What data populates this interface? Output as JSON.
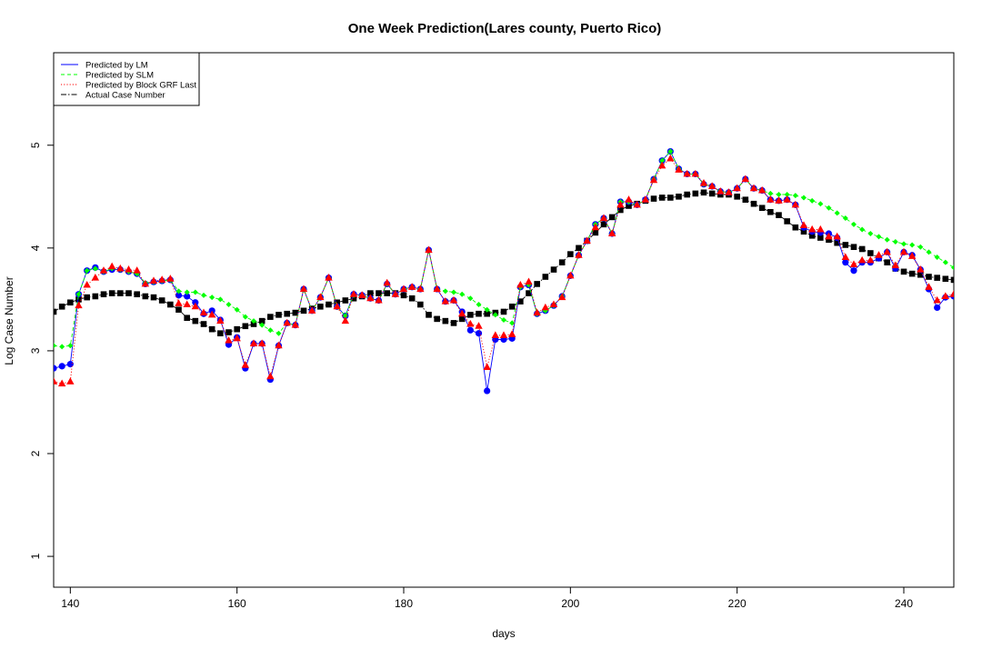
{
  "chart_data": {
    "type": "line",
    "title": "One Week Prediction(Lares county, Puerto Rico)",
    "xlabel": "days",
    "ylabel": "Log Case Number",
    "xlim": [
      138,
      246
    ],
    "ylim": [
      0.7,
      5.9
    ],
    "xticks": [
      140,
      160,
      180,
      200,
      220,
      240
    ],
    "yticks": [
      1,
      2,
      3,
      4,
      5
    ],
    "grid": false,
    "legend_position": "top-left",
    "legend": [
      {
        "label": "Predicted by LM",
        "color": "#0000ff",
        "line": "solid"
      },
      {
        "label": "Predicted by SLM",
        "color": "#00ff00",
        "line": "dashed"
      },
      {
        "label": "Predicted by Block GRF Last",
        "color": "#ff0000",
        "line": "dotted"
      },
      {
        "label": "Actual Case Number",
        "color": "#000000",
        "line": "dashdot"
      }
    ],
    "x": [
      138,
      139,
      140,
      141,
      142,
      143,
      144,
      145,
      146,
      147,
      148,
      149,
      150,
      151,
      152,
      153,
      154,
      155,
      156,
      157,
      158,
      159,
      160,
      161,
      162,
      163,
      164,
      165,
      166,
      167,
      168,
      169,
      170,
      171,
      172,
      173,
      174,
      175,
      176,
      177,
      178,
      179,
      180,
      181,
      182,
      183,
      184,
      185,
      186,
      187,
      188,
      189,
      190,
      191,
      192,
      193,
      194,
      195,
      196,
      197,
      198,
      199,
      200,
      201,
      202,
      203,
      204,
      205,
      206,
      207,
      208,
      209,
      210,
      211,
      212,
      213,
      214,
      215,
      216,
      217,
      218,
      219,
      220,
      221,
      222,
      223,
      224,
      225,
      226,
      227,
      228,
      229,
      230,
      231,
      232,
      233,
      234,
      235,
      236,
      237,
      238,
      239,
      240,
      241,
      242,
      243,
      244,
      245,
      246
    ],
    "series": [
      {
        "name": "Predicted by LM",
        "color": "#0000ff",
        "marker": "circle",
        "values": [
          2.83,
          2.85,
          2.87,
          3.55,
          3.78,
          3.81,
          3.77,
          3.79,
          3.79,
          3.77,
          3.75,
          3.65,
          3.67,
          3.68,
          3.69,
          3.54,
          3.53,
          3.47,
          3.36,
          3.39,
          3.3,
          3.06,
          3.13,
          2.83,
          3.07,
          3.07,
          2.72,
          3.05,
          3.27,
          3.25,
          3.6,
          3.39,
          3.52,
          3.71,
          3.43,
          3.34,
          3.55,
          3.54,
          3.51,
          3.49,
          3.65,
          3.55,
          3.6,
          3.62,
          3.6,
          3.98,
          3.6,
          3.48,
          3.49,
          3.38,
          3.2,
          3.17,
          2.61,
          3.11,
          3.11,
          3.12,
          3.62,
          3.64,
          3.36,
          3.39,
          3.44,
          3.53,
          3.73,
          3.93,
          4.07,
          4.23,
          4.29,
          4.14,
          4.45,
          4.45,
          4.42,
          4.47,
          4.67,
          4.85,
          4.94,
          4.77,
          4.72,
          4.72,
          4.62,
          4.6,
          4.55,
          4.54,
          4.58,
          4.67,
          4.58,
          4.56,
          4.47,
          4.46,
          4.47,
          4.42,
          4.2,
          4.16,
          4.15,
          4.14,
          4.1,
          3.86,
          3.78,
          3.86,
          3.86,
          3.9,
          3.96,
          3.8,
          3.96,
          3.93,
          3.79,
          3.6,
          3.42,
          3.52,
          3.53
        ]
      },
      {
        "name": "Predicted by SLM",
        "color": "#00ff00",
        "marker": "diamond",
        "values": [
          3.05,
          3.04,
          3.05,
          3.55,
          3.78,
          3.8,
          3.77,
          3.8,
          3.79,
          3.77,
          3.75,
          3.66,
          3.67,
          3.68,
          3.69,
          3.58,
          3.57,
          3.57,
          3.54,
          3.52,
          3.5,
          3.45,
          3.4,
          3.33,
          3.29,
          3.25,
          3.2,
          3.17,
          3.27,
          3.25,
          3.6,
          3.39,
          3.52,
          3.71,
          3.43,
          3.34,
          3.54,
          3.54,
          3.51,
          3.49,
          3.65,
          3.55,
          3.6,
          3.62,
          3.6,
          3.98,
          3.6,
          3.58,
          3.57,
          3.55,
          3.51,
          3.45,
          3.4,
          3.35,
          3.3,
          3.27,
          3.62,
          3.64,
          3.36,
          3.39,
          3.44,
          3.53,
          3.73,
          3.93,
          4.07,
          4.23,
          4.29,
          4.14,
          4.45,
          4.45,
          4.42,
          4.47,
          4.67,
          4.85,
          4.94,
          4.77,
          4.72,
          4.72,
          4.62,
          4.6,
          4.55,
          4.54,
          4.58,
          4.67,
          4.58,
          4.56,
          4.53,
          4.52,
          4.52,
          4.51,
          4.49,
          4.46,
          4.43,
          4.39,
          4.34,
          4.29,
          4.23,
          4.18,
          4.14,
          4.11,
          4.08,
          4.06,
          4.04,
          4.03,
          4.01,
          3.96,
          3.91,
          3.86,
          3.81
        ]
      },
      {
        "name": "Predicted by Block GRF Last",
        "color": "#ff0000",
        "marker": "triangle",
        "values": [
          2.7,
          2.68,
          2.7,
          3.44,
          3.64,
          3.71,
          3.78,
          3.82,
          3.8,
          3.79,
          3.78,
          3.65,
          3.68,
          3.69,
          3.7,
          3.46,
          3.45,
          3.43,
          3.37,
          3.35,
          3.29,
          3.1,
          3.12,
          2.86,
          3.07,
          3.07,
          2.75,
          3.05,
          3.27,
          3.25,
          3.6,
          3.39,
          3.52,
          3.71,
          3.43,
          3.29,
          3.55,
          3.54,
          3.51,
          3.49,
          3.66,
          3.55,
          3.6,
          3.62,
          3.6,
          3.98,
          3.6,
          3.48,
          3.49,
          3.36,
          3.26,
          3.24,
          2.84,
          3.15,
          3.15,
          3.16,
          3.64,
          3.67,
          3.37,
          3.42,
          3.45,
          3.52,
          3.73,
          3.93,
          4.07,
          4.2,
          4.29,
          4.14,
          4.42,
          4.47,
          4.42,
          4.47,
          4.66,
          4.8,
          4.87,
          4.76,
          4.72,
          4.72,
          4.63,
          4.6,
          4.55,
          4.54,
          4.58,
          4.67,
          4.58,
          4.56,
          4.47,
          4.46,
          4.47,
          4.42,
          4.22,
          4.18,
          4.18,
          4.11,
          4.11,
          3.91,
          3.84,
          3.88,
          3.88,
          3.93,
          3.96,
          3.83,
          3.96,
          3.92,
          3.79,
          3.62,
          3.49,
          3.53,
          3.55
        ]
      },
      {
        "name": "Actual Case Number",
        "color": "#000000",
        "marker": "square",
        "values": [
          3.38,
          3.43,
          3.47,
          3.5,
          3.52,
          3.53,
          3.55,
          3.56,
          3.56,
          3.56,
          3.55,
          3.53,
          3.52,
          3.49,
          3.45,
          3.4,
          3.32,
          3.29,
          3.26,
          3.21,
          3.17,
          3.18,
          3.21,
          3.24,
          3.26,
          3.29,
          3.33,
          3.35,
          3.36,
          3.37,
          3.39,
          3.41,
          3.43,
          3.45,
          3.47,
          3.49,
          3.51,
          3.53,
          3.56,
          3.56,
          3.56,
          3.56,
          3.54,
          3.51,
          3.45,
          3.35,
          3.31,
          3.29,
          3.27,
          3.31,
          3.35,
          3.36,
          3.36,
          3.37,
          3.38,
          3.43,
          3.48,
          3.56,
          3.65,
          3.72,
          3.79,
          3.86,
          3.94,
          4.0,
          4.07,
          4.15,
          4.23,
          4.3,
          4.37,
          4.41,
          4.43,
          4.46,
          4.48,
          4.49,
          4.49,
          4.5,
          4.52,
          4.53,
          4.54,
          4.53,
          4.52,
          4.52,
          4.5,
          4.47,
          4.43,
          4.39,
          4.35,
          4.32,
          4.26,
          4.2,
          4.16,
          4.12,
          4.1,
          4.08,
          4.05,
          4.03,
          4.01,
          3.99,
          3.95,
          3.9,
          3.86,
          3.8,
          3.77,
          3.75,
          3.74,
          3.72,
          3.71,
          3.7,
          3.69
        ]
      }
    ]
  }
}
